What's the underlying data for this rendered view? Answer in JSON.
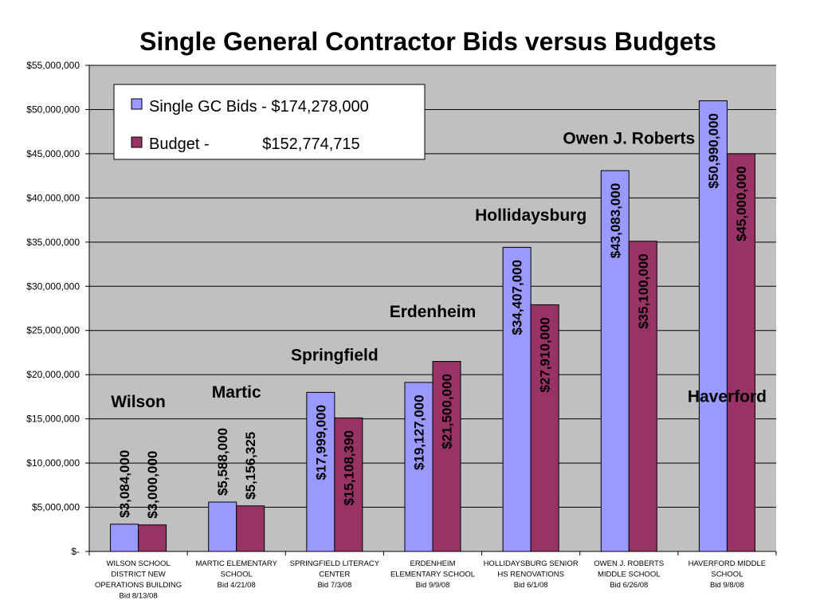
{
  "chart_data": {
    "type": "bar",
    "title": "Single General Contractor Bids versus Budgets",
    "xlabel": "",
    "ylabel": "",
    "ylim": [
      0,
      55000000
    ],
    "ytick_step": 5000000,
    "grid": true,
    "legend_position": "top-left",
    "plot_background": "#c0c0c0",
    "categories": [
      [
        "WILSON SCHOOL",
        "DISTRICT NEW",
        "OPERATIONS BUILDING",
        "Bid 8/13/08"
      ],
      [
        "MARTIC ELEMENTARY",
        "SCHOOL",
        "Bid 4/21/08"
      ],
      [
        "SPRINGFIELD LITERACY",
        "CENTER",
        "Bid 7/3/08"
      ],
      [
        "ERDENHEIM",
        "ELEMENTARY SCHOOL",
        "Bid 9/9/08"
      ],
      [
        "HOLLIDAYSBURG SENIOR",
        "HS RENOVATIONS",
        "Bid 6/1/08"
      ],
      [
        "OWEN J. ROBERTS",
        "MIDDLE SCHOOL",
        "Bid 6/26/08"
      ],
      [
        "HAVERFORD MIDDLE",
        "SCHOOL",
        "Bid 9/8/08"
      ]
    ],
    "series": [
      {
        "name": "Single GC Bids - $174,278,000",
        "color": "#9999ff",
        "values": [
          3084000,
          5588000,
          17999000,
          19127000,
          34407000,
          43083000,
          50990000
        ],
        "labels": [
          "$3,084,000",
          "$5,588,000",
          "$17,999,000",
          "$19,127,000",
          "$34,407,000",
          "$43,083,000",
          "$50,990,000"
        ]
      },
      {
        "name": "Budget -            $152,774,715",
        "color": "#993366",
        "values": [
          3000000,
          5156325,
          15108390,
          21500000,
          27910000,
          35100000,
          45000000
        ],
        "labels": [
          "$3,000,000",
          "$5,156,325",
          "$15,108,390",
          "$21,500,000",
          "$27,910,000",
          "$35,100,000",
          "$45,000,000"
        ]
      }
    ],
    "ytick_labels": [
      "$-",
      "$5,000,000",
      "$10,000,000",
      "$15,000,000",
      "$20,000,000",
      "$25,000,000",
      "$30,000,000",
      "$35,000,000",
      "$40,000,000",
      "$45,000,000",
      "$50,000,000",
      "$55,000,000"
    ],
    "annotations": [
      {
        "text": "Wilson",
        "category": 0,
        "value": 16300000
      },
      {
        "text": "Martic",
        "category": 1,
        "value": 17400000
      },
      {
        "text": "Springfield",
        "category": 2,
        "value": 21600000
      },
      {
        "text": "Erdenheim",
        "category": 3,
        "value": 26500000
      },
      {
        "text": "Hollidaysburg",
        "category": 4,
        "value": 37400000
      },
      {
        "text": "Owen J. Roberts",
        "category": 5,
        "value": 46100000
      },
      {
        "text": "Haverford",
        "category": 6,
        "value": 16900000
      }
    ]
  }
}
